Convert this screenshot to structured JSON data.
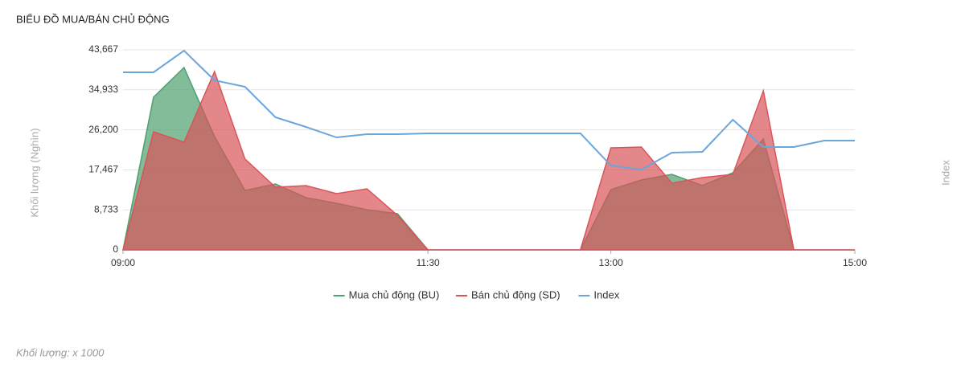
{
  "chart_data": {
    "type": "area",
    "title": "BIỂU ĐỒ MUA/BÁN CHỦ ĐỘNG",
    "y_label": "Khối lượng (Nghìn)",
    "y2_label": "Index",
    "note": "Khối lượng: x 1000",
    "categories": [
      "09:00",
      null,
      null,
      null,
      null,
      null,
      null,
      null,
      null,
      null,
      "11:30",
      null,
      null,
      null,
      null,
      null,
      "13:00",
      null,
      null,
      null,
      null,
      null,
      null,
      null,
      "15:00"
    ],
    "ylim": [
      0,
      43667
    ],
    "yticks": [
      0,
      {
        "value": 8733,
        "label": "8,733"
      },
      {
        "value": 17467,
        "label": "17,467"
      },
      {
        "value": 26200,
        "label": "26,200"
      },
      {
        "value": 34933,
        "label": "34,933"
      },
      {
        "value": 43667,
        "label": "43,667"
      }
    ],
    "grid": true,
    "legend": "bottom",
    "series": [
      {
        "name": "Mua chủ động (BU)",
        "color": "#4e9f6e",
        "kind": "area",
        "values": [
          0,
          33320,
          39810,
          24730,
          12980,
          14380,
          11400,
          10170,
          8770,
          7890,
          0,
          0,
          0,
          0,
          0,
          0,
          13150,
          15260,
          16480,
          14030,
          16840,
          24200,
          0,
          0,
          0
        ]
      },
      {
        "name": "Bán chủ động (SD)",
        "color": "#d9545a",
        "kind": "area",
        "values": [
          0,
          25780,
          23500,
          38930,
          19820,
          13680,
          14030,
          12280,
          13330,
          7540,
          0,
          0,
          0,
          0,
          0,
          0,
          22270,
          22450,
          14560,
          15780,
          16480,
          34720,
          0,
          0,
          0
        ]
      },
      {
        "name": "Index",
        "color": "#6aa6dc",
        "kind": "line",
        "values": [
          38760,
          38760,
          43490,
          37000,
          35600,
          28940,
          26830,
          24550,
          25250,
          25250,
          25430,
          25430,
          25430,
          25430,
          25430,
          25430,
          18410,
          17540,
          21220,
          21400,
          28410,
          22450,
          22450,
          23850,
          23850
        ]
      }
    ]
  }
}
